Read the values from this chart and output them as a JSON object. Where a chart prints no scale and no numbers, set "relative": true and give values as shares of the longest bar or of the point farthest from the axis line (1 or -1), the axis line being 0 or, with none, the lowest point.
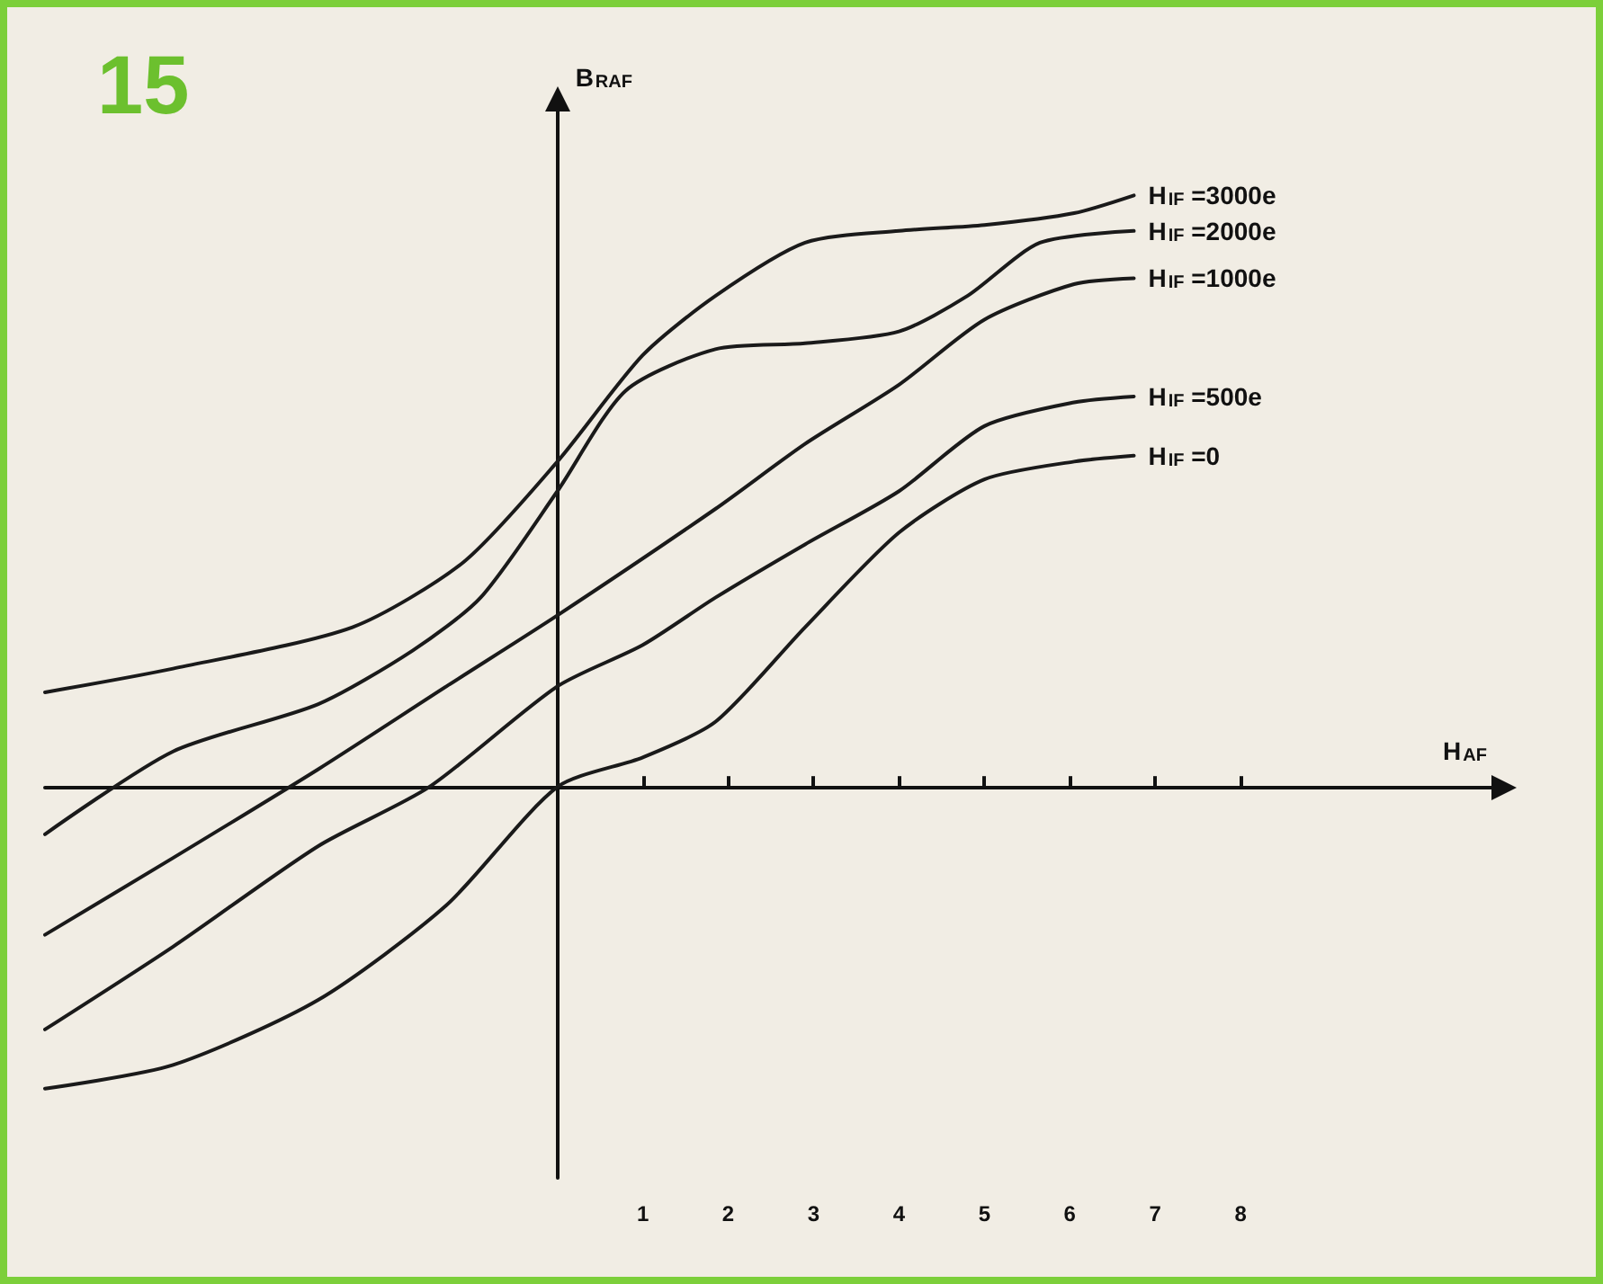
{
  "chart_data": {
    "type": "line",
    "relative": true,
    "xlabel": "H$_{AF}$",
    "ylabel": "B$_{RAF}$",
    "annotations": [
      "15"
    ],
    "xlim": [
      -6,
      11
    ],
    "xticks": [
      1,
      2,
      3,
      4,
      5,
      6,
      7,
      8
    ],
    "grid": false,
    "legend": false,
    "line_style": "solid",
    "series": [
      {
        "name": "H$_{IF}$ =3000e",
        "color": "#1a1a1a",
        "x": [
          -6,
          -4.5,
          -2.4,
          -1.1,
          0,
          1,
          1.85,
          2.9,
          4,
          5,
          6.05,
          6.75
        ],
        "values": [
          0.16,
          0.2,
          0.27,
          0.38,
          0.55,
          0.73,
          0.83,
          0.92,
          0.94,
          0.95,
          0.97,
          1
        ]
      },
      {
        "name": "H$_{IF}$ =2000e",
        "color": "#1a1a1a",
        "x": [
          -6,
          -4.5,
          -2.8,
          -1.7,
          -0.9,
          0,
          0.8,
          1.85,
          2.9,
          4,
          4.8,
          5.65,
          6.75
        ],
        "values": [
          -0.08,
          0.06,
          0.14,
          0.23,
          0.32,
          0.5,
          0.67,
          0.74,
          0.75,
          0.77,
          0.83,
          0.92,
          0.94
        ]
      },
      {
        "name": "H$_{IF}$ =1000e",
        "color": "#1a1a1a",
        "x": [
          -6,
          -4.5,
          -2.8,
          -1.3,
          0,
          1.85,
          2.9,
          4,
          5,
          6.05,
          6.75
        ],
        "values": [
          -0.25,
          -0.12,
          0.03,
          0.17,
          0.29,
          0.47,
          0.58,
          0.68,
          0.79,
          0.85,
          0.86
        ]
      },
      {
        "name": "H$_{IF}$ =500e",
        "color": "#1a1a1a",
        "x": [
          -6,
          -4.5,
          -2.8,
          -1.5,
          0,
          1,
          1.85,
          2.9,
          4,
          5,
          6.05,
          6.75
        ],
        "values": [
          -0.41,
          -0.27,
          -0.1,
          0,
          0.17,
          0.24,
          0.32,
          0.41,
          0.5,
          0.61,
          0.65,
          0.66
        ]
      },
      {
        "name": "H$_{IF}$ =0",
        "color": "#1a1a1a",
        "x": [
          -6,
          -4.5,
          -2.8,
          -1.3,
          0,
          1,
          1.85,
          2.9,
          4,
          5,
          6.05,
          6.75
        ],
        "values": [
          -0.51,
          -0.47,
          -0.36,
          -0.2,
          0,
          0.05,
          0.11,
          0.27,
          0.43,
          0.52,
          0.55,
          0.56
        ]
      }
    ]
  }
}
